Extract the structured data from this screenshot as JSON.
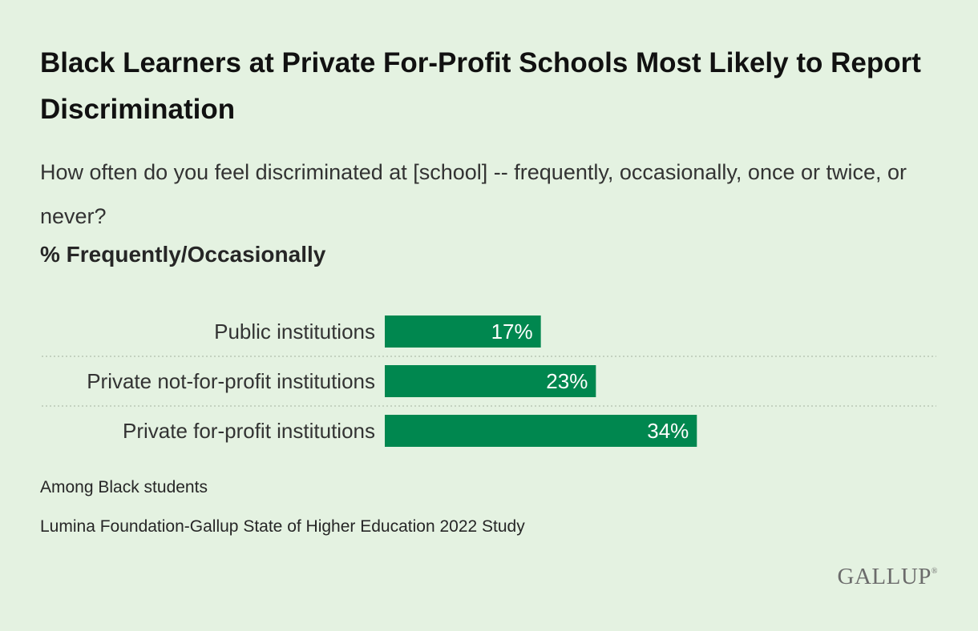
{
  "chart_data": {
    "type": "bar",
    "orientation": "horizontal",
    "title": "Black Learners at Private For-Profit Schools Most Likely to Report Discrimination",
    "subtitle": "How often do you feel discriminated at [school] -- frequently, occasionally, once or twice, or never?",
    "measure_label": "% Frequently/Occasionally",
    "categories": [
      "Public institutions",
      "Private not-for-profit institutions",
      "Private for-profit institutions"
    ],
    "values": [
      17,
      23,
      34
    ],
    "value_labels": [
      "17%",
      "23%",
      "34%"
    ],
    "xlim": [
      0,
      100
    ],
    "bar_color": "#00874f",
    "grid": false,
    "legend": "none"
  },
  "notes": {
    "population": "Among Black students",
    "source": "Lumina Foundation-Gallup State of Higher Education 2022 Study"
  },
  "brand": {
    "logo_text": "GALLUP",
    "logo_mark": "®"
  }
}
